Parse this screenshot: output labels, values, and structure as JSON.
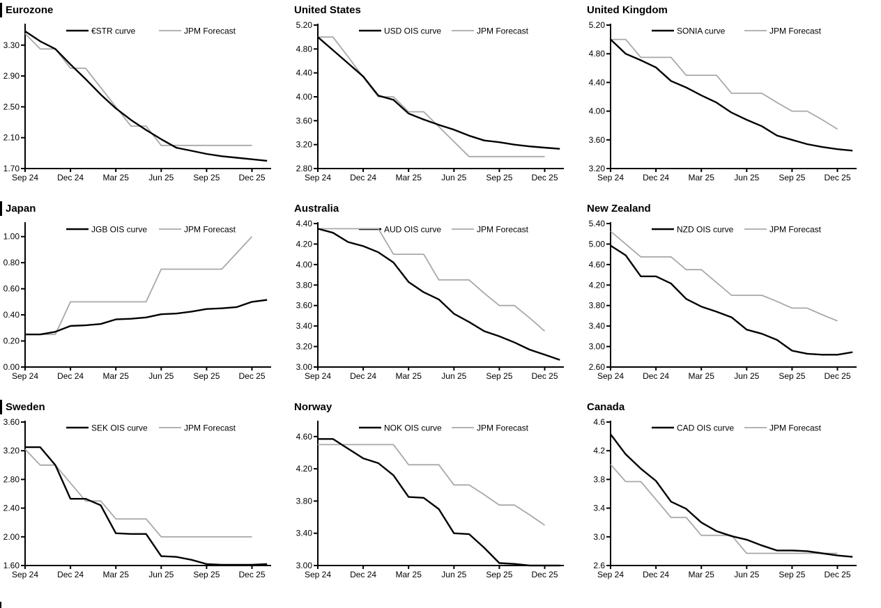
{
  "page": {
    "background": "#ffffff",
    "grid": "3x3"
  },
  "colors": {
    "market_curve": "#000000",
    "forecast": "#a8a8a8",
    "axis": "#000000",
    "text": "#000000"
  },
  "footer_marker": true,
  "chart_data": [
    {
      "type": "line",
      "title": "Eurozone",
      "left_bar": true,
      "legend": [
        "€STR curve",
        "JPM Forecast"
      ],
      "x_ticks": [
        "Sep 24",
        "Dec 24",
        "Mar 25",
        "Jun 25",
        "Sep 25",
        "Dec 25"
      ],
      "y_tick_labels": [
        "1.70",
        "2.10",
        "2.50",
        "2.90",
        "3.30"
      ],
      "ylim": [
        1.7,
        3.56
      ],
      "series": [
        {
          "name": "€STR curve",
          "role": "market-curve",
          "color": "#000000",
          "values": [
            3.48,
            3.35,
            3.25,
            3.05,
            2.86,
            2.66,
            2.48,
            2.33,
            2.2,
            2.08,
            1.97,
            1.93,
            1.89,
            1.86,
            1.84,
            1.82,
            1.8
          ]
        },
        {
          "name": "JPM Forecast",
          "role": "forecast",
          "color": "#a8a8a8",
          "values": [
            3.45,
            3.25,
            3.25,
            3.0,
            3.0,
            2.75,
            2.5,
            2.25,
            2.25,
            2.0,
            2.0,
            2.0,
            2.0,
            2.0,
            2.0,
            2.0
          ]
        }
      ]
    },
    {
      "type": "line",
      "title": "United States",
      "left_bar": false,
      "legend": [
        "USD OIS curve",
        "JPM Forecast"
      ],
      "x_ticks": [
        "Sep 24",
        "Dec 24",
        "Mar 25",
        "Jun 25",
        "Sep 25",
        "Dec 25"
      ],
      "y_tick_labels": [
        "2.80",
        "3.20",
        "3.60",
        "4.00",
        "4.40",
        "4.80",
        "5.20"
      ],
      "ylim": [
        2.8,
        5.2
      ],
      "series": [
        {
          "name": "USD OIS curve",
          "role": "market-curve",
          "color": "#000000",
          "values": [
            5.0,
            4.78,
            4.56,
            4.34,
            4.02,
            3.95,
            3.72,
            3.62,
            3.53,
            3.45,
            3.35,
            3.27,
            3.24,
            3.2,
            3.17,
            3.15,
            3.13
          ]
        },
        {
          "name": "JPM Forecast",
          "role": "forecast",
          "color": "#a8a8a8",
          "values": [
            5.0,
            5.0,
            4.67,
            4.33,
            4.0,
            4.0,
            3.75,
            3.75,
            3.5,
            3.25,
            3.0,
            3.0,
            3.0,
            3.0,
            3.0,
            3.0
          ]
        }
      ]
    },
    {
      "type": "line",
      "title": "United Kingdom",
      "left_bar": false,
      "legend": [
        "SONIA curve",
        "JPM Forecast"
      ],
      "x_ticks": [
        "Sep 24",
        "Dec 24",
        "Mar 25",
        "Jun 25",
        "Sep 25",
        "Dec 25"
      ],
      "y_tick_labels": [
        "3.20",
        "3.60",
        "4.00",
        "4.40",
        "4.80",
        "5.20"
      ],
      "ylim": [
        3.2,
        5.2
      ],
      "series": [
        {
          "name": "SONIA curve",
          "role": "market-curve",
          "color": "#000000",
          "values": [
            5.0,
            4.8,
            4.71,
            4.61,
            4.42,
            4.33,
            4.22,
            4.12,
            3.98,
            3.88,
            3.79,
            3.66,
            3.6,
            3.54,
            3.5,
            3.47,
            3.45
          ]
        },
        {
          "name": "JPM Forecast",
          "role": "forecast",
          "color": "#a8a8a8",
          "values": [
            5.0,
            5.0,
            4.75,
            4.75,
            4.75,
            4.5,
            4.5,
            4.5,
            4.25,
            4.25,
            4.25,
            4.12,
            4.0,
            4.0,
            3.88,
            3.75
          ]
        }
      ]
    },
    {
      "type": "line",
      "title": "Japan",
      "left_bar": true,
      "legend": [
        "JGB OIS curve",
        "JPM Forecast"
      ],
      "x_ticks": [
        "Sep 24",
        "Dec 24",
        "Mar 25",
        "Jun 25",
        "Sep 25",
        "Dec 25"
      ],
      "y_tick_labels": [
        "0.00",
        "0.20",
        "0.40",
        "0.60",
        "0.80",
        "1.00"
      ],
      "ylim": [
        0.0,
        1.1
      ],
      "series": [
        {
          "name": "JGB OIS curve",
          "role": "market-curve",
          "color": "#000000",
          "values": [
            0.25,
            0.25,
            0.27,
            0.315,
            0.32,
            0.33,
            0.365,
            0.37,
            0.38,
            0.405,
            0.41,
            0.425,
            0.445,
            0.45,
            0.46,
            0.5,
            0.515
          ]
        },
        {
          "name": "JPM Forecast",
          "role": "forecast",
          "color": "#a8a8a8",
          "values": [
            0.25,
            0.25,
            0.25,
            0.5,
            0.5,
            0.5,
            0.5,
            0.5,
            0.5,
            0.75,
            0.75,
            0.75,
            0.75,
            0.75,
            0.875,
            1.0
          ]
        }
      ]
    },
    {
      "type": "line",
      "title": "Australia",
      "left_bar": false,
      "legend": [
        "AUD OIS curve",
        "JPM Forecast"
      ],
      "x_ticks": [
        "Sep 24",
        "Dec 24",
        "Mar 25",
        "Jun 25",
        "Sep 25",
        "Dec 25"
      ],
      "y_tick_labels": [
        "3.00",
        "3.20",
        "3.40",
        "3.60",
        "3.80",
        "4.00",
        "4.20",
        "4.40"
      ],
      "ylim": [
        3.0,
        4.4
      ],
      "series": [
        {
          "name": "AUD OIS curve",
          "role": "market-curve",
          "color": "#000000",
          "values": [
            4.35,
            4.31,
            4.22,
            4.18,
            4.12,
            4.02,
            3.83,
            3.73,
            3.66,
            3.52,
            3.44,
            3.35,
            3.3,
            3.24,
            3.17,
            3.12,
            3.07
          ]
        },
        {
          "name": "JPM Forecast",
          "role": "forecast",
          "color": "#a8a8a8",
          "values": [
            4.35,
            4.35,
            4.35,
            4.35,
            4.35,
            4.1,
            4.1,
            4.1,
            3.85,
            3.85,
            3.85,
            3.72,
            3.6,
            3.6,
            3.48,
            3.35
          ]
        }
      ]
    },
    {
      "type": "line",
      "title": "New Zealand",
      "left_bar": false,
      "legend": [
        "NZD OIS curve",
        "JPM Forecast"
      ],
      "x_ticks": [
        "Sep 24",
        "Dec 24",
        "Mar 25",
        "Jun 25",
        "Sep 25",
        "Dec 25"
      ],
      "y_tick_labels": [
        "2.60",
        "3.00",
        "3.40",
        "3.80",
        "4.20",
        "4.60",
        "5.00",
        "5.40"
      ],
      "ylim": [
        2.6,
        5.4
      ],
      "series": [
        {
          "name": "NZD OIS curve",
          "role": "market-curve",
          "color": "#000000",
          "values": [
            4.97,
            4.78,
            4.37,
            4.37,
            4.23,
            3.93,
            3.78,
            3.68,
            3.57,
            3.33,
            3.25,
            3.13,
            2.92,
            2.86,
            2.84,
            2.84,
            2.89
          ]
        },
        {
          "name": "JPM Forecast",
          "role": "forecast",
          "color": "#a8a8a8",
          "values": [
            5.25,
            5.0,
            4.75,
            4.75,
            4.75,
            4.5,
            4.5,
            4.25,
            4.0,
            4.0,
            4.0,
            3.88,
            3.75,
            3.75,
            3.62,
            3.5
          ]
        }
      ]
    },
    {
      "type": "line",
      "title": "Sweden",
      "left_bar": true,
      "legend": [
        "SEK OIS curve",
        "JPM Forecast"
      ],
      "x_ticks": [
        "Sep 24",
        "Dec 24",
        "Mar 25",
        "Jun 25",
        "Sep 25",
        "Dec 25"
      ],
      "y_tick_labels": [
        "1.60",
        "2.00",
        "2.40",
        "2.80",
        "3.20",
        "3.60"
      ],
      "ylim": [
        1.6,
        3.6
      ],
      "series": [
        {
          "name": "SEK OIS curve",
          "role": "market-curve",
          "color": "#000000",
          "values": [
            3.25,
            3.25,
            3.0,
            2.53,
            2.53,
            2.44,
            2.05,
            2.04,
            2.04,
            1.73,
            1.72,
            1.68,
            1.62,
            1.61,
            1.61,
            1.61,
            1.62
          ]
        },
        {
          "name": "JPM Forecast",
          "role": "forecast",
          "color": "#a8a8a8",
          "values": [
            3.22,
            3.0,
            3.0,
            2.75,
            2.5,
            2.5,
            2.25,
            2.25,
            2.25,
            2.0,
            2.0,
            2.0,
            2.0,
            2.0,
            2.0,
            2.0
          ]
        }
      ]
    },
    {
      "type": "line",
      "title": "Norway",
      "left_bar": false,
      "legend": [
        "NOK OIS curve",
        "JPM Forecast"
      ],
      "x_ticks": [
        "Sep 24",
        "Dec 24",
        "Mar 25",
        "Jun 25",
        "Sep 25",
        "Dec 25"
      ],
      "y_tick_labels": [
        "3.00",
        "3.40",
        "3.80",
        "4.20",
        "4.60"
      ],
      "ylim": [
        3.0,
        4.78
      ],
      "series": [
        {
          "name": "NOK OIS curve",
          "role": "market-curve",
          "color": "#000000",
          "values": [
            4.57,
            4.57,
            4.45,
            4.33,
            4.27,
            4.12,
            3.85,
            3.84,
            3.7,
            3.4,
            3.39,
            3.22,
            3.03,
            3.02,
            3.0,
            3.0,
            3.0
          ]
        },
        {
          "name": "JPM Forecast",
          "role": "forecast",
          "color": "#a8a8a8",
          "values": [
            4.5,
            4.5,
            4.5,
            4.5,
            4.5,
            4.5,
            4.25,
            4.25,
            4.25,
            4.0,
            4.0,
            3.88,
            3.75,
            3.75,
            3.63,
            3.5
          ]
        }
      ]
    },
    {
      "type": "line",
      "title": "Canada",
      "left_bar": false,
      "legend": [
        "CAD OIS curve",
        "JPM Forecast"
      ],
      "x_ticks": [
        "Sep 24",
        "Dec 24",
        "Mar 25",
        "Jun 25",
        "Sep 25",
        "Dec 25"
      ],
      "y_tick_labels": [
        "2.6",
        "3.0",
        "3.4",
        "3.8",
        "4.2",
        "4.6"
      ],
      "ylim": [
        2.6,
        4.6
      ],
      "series": [
        {
          "name": "CAD OIS curve",
          "role": "market-curve",
          "color": "#000000",
          "values": [
            4.43,
            4.15,
            3.95,
            3.78,
            3.49,
            3.39,
            3.2,
            3.08,
            3.01,
            2.96,
            2.88,
            2.81,
            2.81,
            2.8,
            2.77,
            2.74,
            2.72
          ]
        },
        {
          "name": "JPM Forecast",
          "role": "forecast",
          "color": "#a8a8a8",
          "values": [
            4.01,
            3.77,
            3.77,
            3.52,
            3.27,
            3.27,
            3.02,
            3.02,
            3.02,
            2.77,
            2.77,
            2.77,
            2.77,
            2.77,
            2.77,
            2.77
          ]
        }
      ]
    }
  ]
}
